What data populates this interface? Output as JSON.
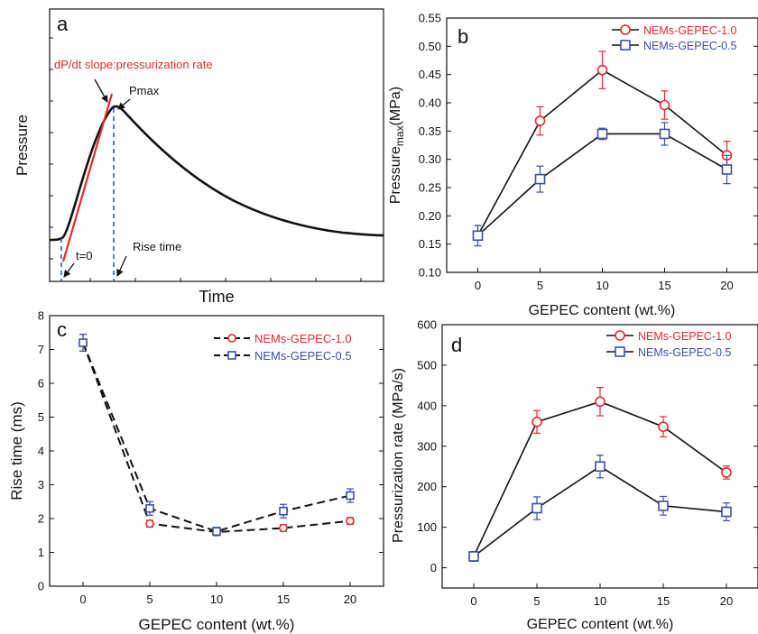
{
  "colors": {
    "red": "#e8282b",
    "blue": "#3a4fa8",
    "dash": "#2b56c4",
    "black": "#111111"
  },
  "chart_data": [
    {
      "panel": "a",
      "type": "line",
      "xlabel": "Time",
      "ylabel": "Pressure",
      "annotations": {
        "slope": "dP/dt slope:pressurization rate",
        "pmax": "Pmax",
        "t0": "t=0",
        "rise": "Rise time"
      }
    },
    {
      "panel": "b",
      "type": "line",
      "xlabel": "GEPEC content (wt.%)",
      "ylabel_main": "Pressure",
      "ylabel_sub": "max",
      "ylabel_unit": "(MPa)",
      "x": [
        0,
        5,
        10,
        15,
        20
      ],
      "xlim": [
        -2.5,
        22.5
      ],
      "ylim": [
        0.1,
        0.55
      ],
      "yticks": [
        "0.10",
        "0.15",
        "0.20",
        "0.25",
        "0.30",
        "0.35",
        "0.40",
        "0.45",
        "0.50",
        "0.55"
      ],
      "xticks": [
        "0",
        "5",
        "10",
        "15",
        "20"
      ],
      "series": [
        {
          "name": "NEMs-GEPEC-1.0",
          "marker": "circle",
          "color": "#e8282b",
          "values": [
            0.165,
            0.368,
            0.458,
            0.396,
            0.307
          ],
          "err": [
            0.018,
            0.025,
            0.033,
            0.025,
            0.025
          ]
        },
        {
          "name": "NEMs-GEPEC-0.5",
          "marker": "square",
          "color": "#3a4fa8",
          "values": [
            0.165,
            0.265,
            0.345,
            0.345,
            0.282
          ],
          "err": [
            0.018,
            0.023,
            0.01,
            0.02,
            0.025
          ]
        }
      ]
    },
    {
      "panel": "c",
      "type": "line",
      "xlabel": "GEPEC content (wt.%)",
      "ylabel": "Rise time (ms)",
      "x": [
        0,
        5,
        10,
        15,
        20
      ],
      "xlim": [
        -2.5,
        22.5
      ],
      "ylim": [
        0,
        8
      ],
      "yticks": [
        "0",
        "1",
        "2",
        "3",
        "4",
        "5",
        "6",
        "7",
        "8"
      ],
      "xticks": [
        "0",
        "5",
        "10",
        "15",
        "20"
      ],
      "series": [
        {
          "name": "NEMs-GEPEC-1.0",
          "marker": "circle",
          "color": "#e8282b",
          "values": [
            7.2,
            1.85,
            1.6,
            1.72,
            1.93
          ],
          "err": [
            0.25,
            0.1,
            0.1,
            0.1,
            0.1
          ]
        },
        {
          "name": "NEMs-GEPEC-0.5",
          "marker": "square",
          "color": "#3a4fa8",
          "values": [
            7.2,
            2.3,
            1.62,
            2.22,
            2.68
          ],
          "err": [
            0.25,
            0.2,
            0.12,
            0.2,
            0.2
          ]
        }
      ]
    },
    {
      "panel": "d",
      "type": "line",
      "xlabel": "GEPEC content (wt.%)",
      "ylabel": "Pressurization rate (MPa/s)",
      "x": [
        0,
        5,
        10,
        15,
        20
      ],
      "xlim": [
        -2.5,
        22.5
      ],
      "ylim": [
        -50,
        600
      ],
      "yticks": [
        "0",
        "100",
        "200",
        "300",
        "400",
        "500",
        "600"
      ],
      "xticks": [
        "0",
        "5",
        "10",
        "15",
        "20"
      ],
      "series": [
        {
          "name": "NEMs-GEPEC-1.0",
          "marker": "circle",
          "color": "#e8282b",
          "values": [
            28,
            360,
            410,
            348,
            235
          ],
          "err": [
            12,
            28,
            35,
            25,
            16
          ]
        },
        {
          "name": "NEMs-GEPEC-0.5",
          "marker": "square",
          "color": "#3a4fa8",
          "values": [
            28,
            147,
            250,
            153,
            138
          ],
          "err": [
            12,
            28,
            28,
            23,
            22
          ]
        }
      ]
    }
  ]
}
